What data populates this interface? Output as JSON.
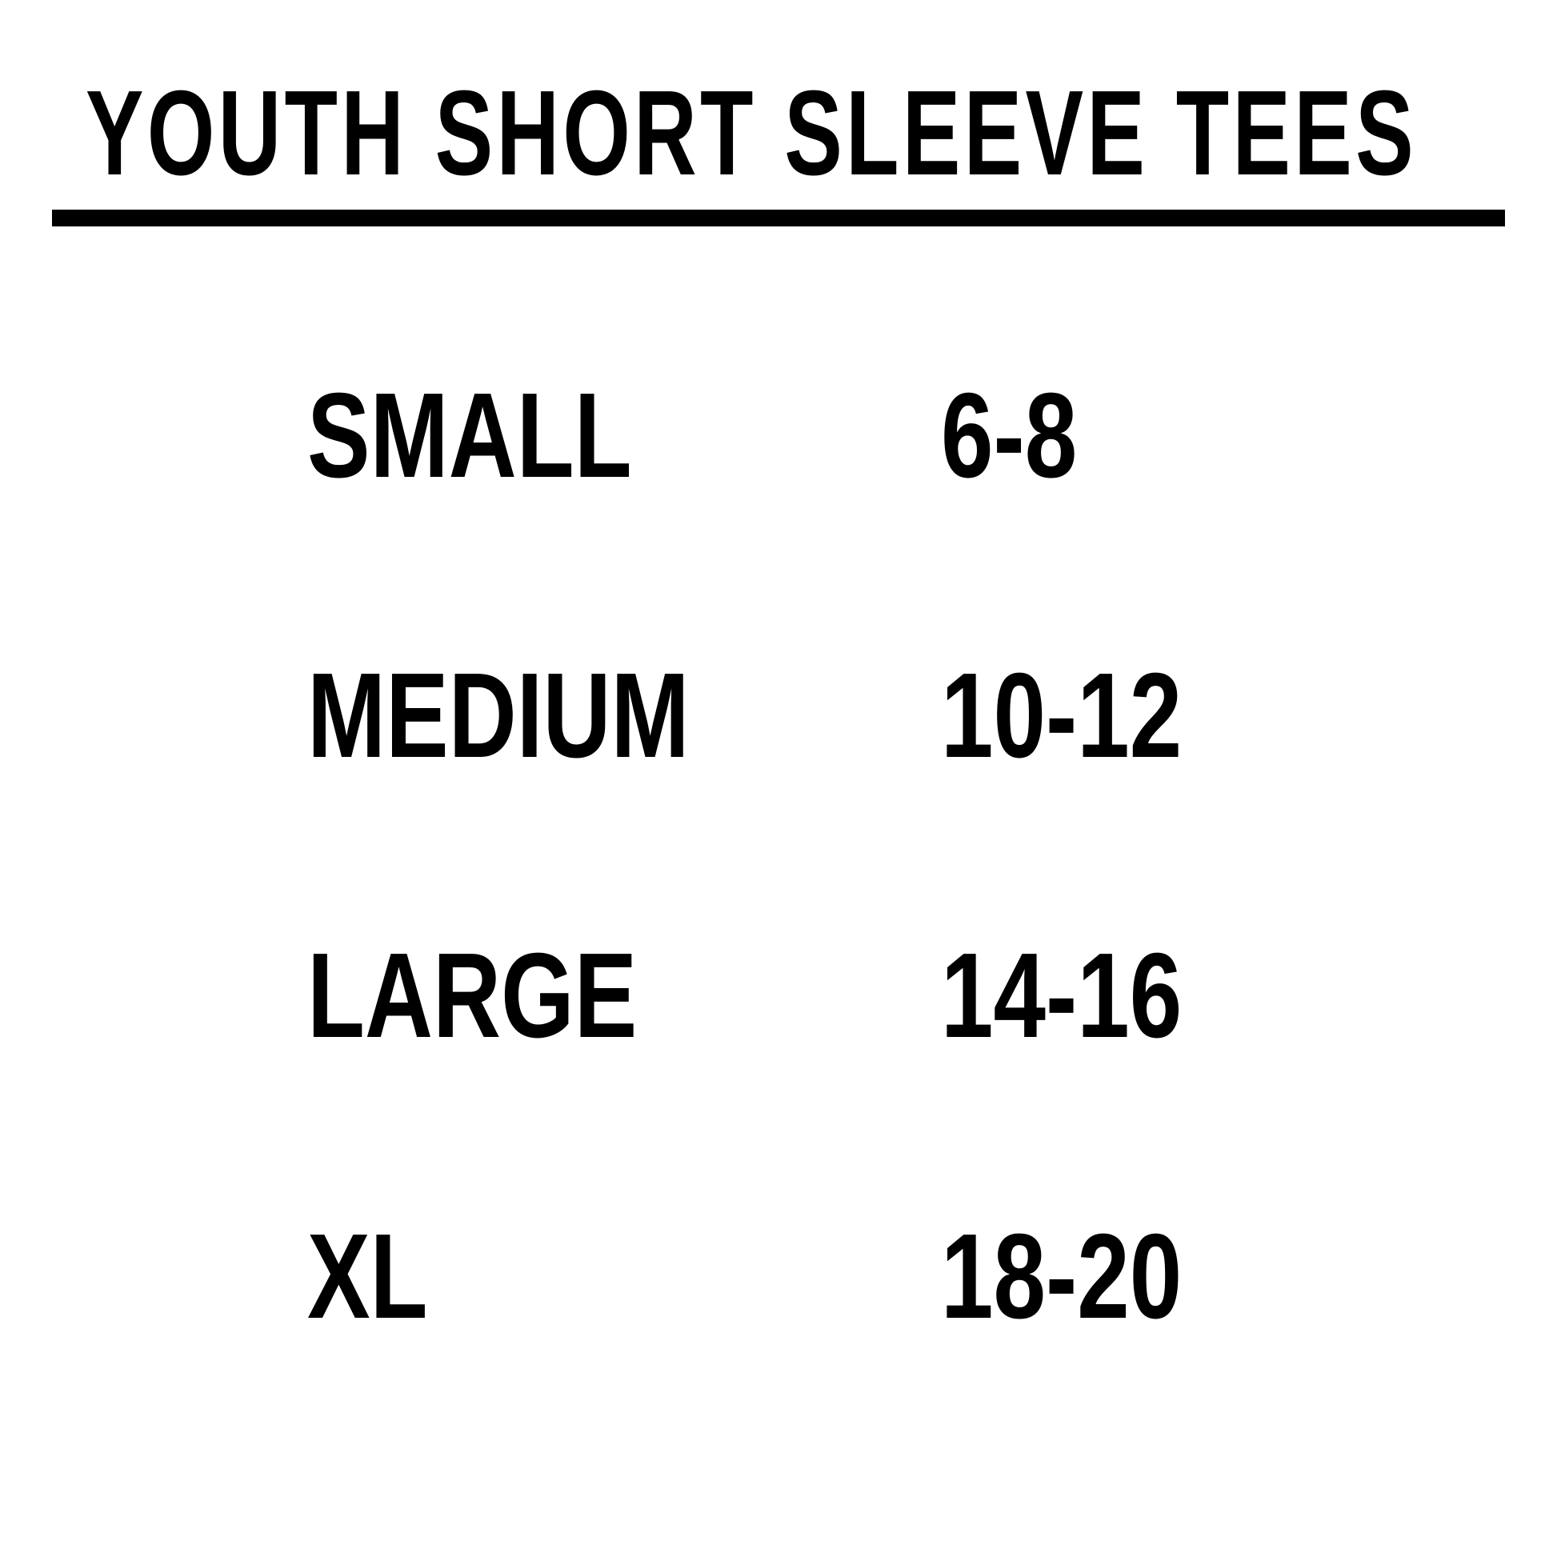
{
  "title": "YOUTH SHORT SLEEVE TEES",
  "sizes": [
    {
      "label": "SMALL",
      "range": "6-8"
    },
    {
      "label": "MEDIUM",
      "range": "10-12"
    },
    {
      "label": "LARGE",
      "range": "14-16"
    },
    {
      "label": "XL",
      "range": "18-20"
    }
  ]
}
